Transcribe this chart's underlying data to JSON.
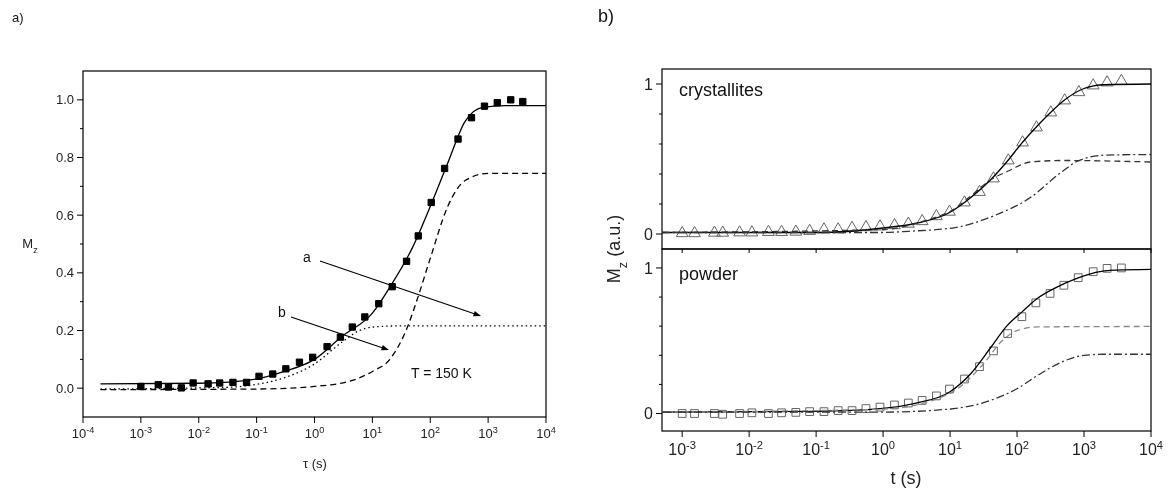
{
  "chart_data": [
    {
      "type": "line",
      "log": "x",
      "xlabel": "τ (s)",
      "ylabel": "M$_{z}$",
      "xlim": [
        0.0001,
        10000
      ],
      "ylim": [
        -0.1,
        1.1
      ],
      "xticks": [
        {
          "value": 0.0001,
          "label": "10$^{-4}$"
        },
        {
          "value": 0.001,
          "label": "10$^{-3}$"
        },
        {
          "value": 0.01,
          "label": "10$^{-2}$"
        },
        {
          "value": 0.1,
          "label": "10$^{-1}$"
        },
        {
          "value": 1,
          "label": "10$^{0}$"
        },
        {
          "value": 10,
          "label": "10$^{1}$"
        },
        {
          "value": 100,
          "label": "10$^{2}$"
        },
        {
          "value": 1000,
          "label": "10$^{3}$"
        },
        {
          "value": 10000,
          "label": "10$^{4}$"
        }
      ],
      "yticks": [
        {
          "value": 0,
          "label": "0.0"
        },
        {
          "value": 0.1,
          "label": null
        },
        {
          "value": 0.2,
          "label": "0.2"
        },
        {
          "value": 0.3,
          "label": null
        },
        {
          "value": 0.4,
          "label": "0.4"
        },
        {
          "value": 0.5,
          "label": null
        },
        {
          "value": 0.6,
          "label": "0.6"
        },
        {
          "value": 0.7,
          "label": null
        },
        {
          "value": 0.8,
          "label": "0.8"
        },
        {
          "value": 0.9,
          "label": null
        },
        {
          "value": 1,
          "label": "1.0"
        }
      ],
      "annotations": [
        "a)",
        "a",
        "b",
        "T = 150 K"
      ],
      "series": [
        {
          "type": "scatter",
          "marker": "square",
          "color": "#000000",
          "x": [
            0.001,
            0.002,
            0.003,
            0.005,
            0.008,
            0.0145,
            0.023,
            0.039,
            0.067,
            0.11,
            0.19,
            0.32,
            0.55,
            0.93,
            1.65,
            2.8,
            4.5,
            7.4,
            12.9,
            22,
            39,
            62,
            104,
            177,
            302,
            516,
            865,
            1440,
            2460,
            3970
          ],
          "values": [
            0.006,
            0.012,
            0.004,
            0.001,
            0.018,
            0.015,
            0.018,
            0.02,
            0.02,
            0.041,
            0.049,
            0.067,
            0.09,
            0.107,
            0.144,
            0.177,
            0.212,
            0.247,
            0.293,
            0.352,
            0.44,
            0.528,
            0.644,
            0.762,
            0.864,
            0.938,
            0.978,
            0.99,
            1.0,
            0.994
          ]
        },
        {
          "type": "line",
          "line_style": "solid",
          "color": "#000000",
          "x": [
            0.0002,
            0.01,
            0.1,
            0.3,
            1,
            3,
            10,
            20,
            50,
            100,
            200,
            400,
            800,
            2000,
            10000
          ],
          "values": [
            0.015,
            0.017,
            0.032,
            0.058,
            0.1,
            0.18,
            0.26,
            0.35,
            0.49,
            0.63,
            0.78,
            0.925,
            0.974,
            0.98,
            0.98
          ]
        },
        {
          "type": "line",
          "line_style": "dashed",
          "color": "#000000",
          "x": [
            0.0002,
            0.1,
            1,
            5,
            10,
            20,
            40,
            60,
            100,
            200,
            400,
            1000,
            10000
          ],
          "values": [
            -0.005,
            -0.003,
            0.006,
            0.03,
            0.058,
            0.1,
            0.21,
            0.31,
            0.45,
            0.63,
            0.72,
            0.745,
            0.745
          ]
        },
        {
          "type": "line",
          "line_style": "dotted",
          "color": "#000000",
          "x": [
            0.0002,
            0.03,
            0.1,
            0.3,
            1,
            3,
            6,
            10,
            30,
            10000
          ],
          "values": [
            -0.003,
            0.003,
            0.013,
            0.036,
            0.084,
            0.16,
            0.2,
            0.212,
            0.216,
            0.216
          ]
        }
      ]
    },
    {
      "type": "line",
      "log": "x",
      "tick_labels": "y",
      "ylabel": "M$_{z}$ (a.u.)",
      "xlim": [
        0.0005,
        10000
      ],
      "ylim": [
        -0.1,
        1.1
      ],
      "xticks": [
        {
          "value": 0.001,
          "label": null
        },
        {
          "value": 0.01,
          "label": null
        },
        {
          "value": 0.1,
          "label": null
        },
        {
          "value": 1,
          "label": null
        },
        {
          "value": 10,
          "label": null
        },
        {
          "value": 100,
          "label": null
        },
        {
          "value": 1000,
          "label": null
        },
        {
          "value": 10000,
          "label": null
        }
      ],
      "yticks": [
        {
          "value": 0,
          "label": "0"
        },
        {
          "value": 0.2,
          "label": null
        },
        {
          "value": 0.4,
          "label": null
        },
        {
          "value": 0.6,
          "label": null
        },
        {
          "value": 0.8,
          "label": null
        },
        {
          "value": 1,
          "label": "1"
        }
      ],
      "annotations": [
        "b)",
        "crystallites"
      ],
      "series": [
        {
          "type": "scatter",
          "marker": "triangle",
          "color": "#666666",
          "x": [
            0.001,
            0.00153,
            0.00303,
            0.00403,
            0.0072,
            0.011,
            0.0194,
            0.0305,
            0.0498,
            0.08,
            0.131,
            0.213,
            0.344,
            0.555,
            0.9,
            1.48,
            2.38,
            3.83,
            6.25,
            9.8,
            16.4,
            27.5,
            44.4,
            74,
            121,
            195,
            319,
            514,
            839,
            1370,
            2210,
            3610
          ],
          "values": [
            0.005,
            0.005,
            0.008,
            0.008,
            0.01,
            0.01,
            0.013,
            0.013,
            0.015,
            0.02,
            0.03,
            0.03,
            0.04,
            0.045,
            0.05,
            0.058,
            0.068,
            0.085,
            0.118,
            0.148,
            0.21,
            0.28,
            0.37,
            0.49,
            0.61,
            0.71,
            0.81,
            0.89,
            0.945,
            0.99,
            1.01,
            1.02
          ]
        },
        {
          "type": "line",
          "line_style": "solid",
          "color": "#000000",
          "x": [
            0.0005,
            0.1,
            1,
            3,
            10,
            20,
            40,
            70,
            120,
            200,
            300,
            500,
            1000,
            2000,
            10000
          ],
          "values": [
            0.01,
            0.01,
            0.04,
            0.07,
            0.145,
            0.24,
            0.36,
            0.48,
            0.61,
            0.72,
            0.8,
            0.89,
            0.97,
            0.995,
            1.0
          ]
        },
        {
          "type": "line",
          "line_style": "dashed",
          "color": "#333333",
          "x": [
            0.0005,
            1,
            5,
            10,
            20,
            40,
            74,
            158,
            500,
            10000
          ],
          "values": [
            0.01,
            0.03,
            0.1,
            0.15,
            0.25,
            0.36,
            0.42,
            0.48,
            0.49,
            0.48
          ]
        },
        {
          "type": "line",
          "line_style": "dashdot",
          "color": "#333333",
          "x": [
            0.0005,
            1,
            2.38,
            11.9,
            43,
            158,
            440,
            839,
            2070,
            10000
          ],
          "values": [
            0.01,
            0.01,
            0.018,
            0.043,
            0.118,
            0.243,
            0.406,
            0.49,
            0.526,
            0.53
          ]
        }
      ]
    },
    {
      "type": "line",
      "log": "x",
      "xlabel": "t (s)",
      "xlim": [
        0.0005,
        10000
      ],
      "ylim": [
        -0.12,
        1.13
      ],
      "xticks": [
        {
          "value": 0.001,
          "label": "10$^{-3}$"
        },
        {
          "value": 0.01,
          "label": "10$^{-2}$"
        },
        {
          "value": 0.1,
          "label": "10$^{-1}$"
        },
        {
          "value": 1,
          "label": "10$^{0}$"
        },
        {
          "value": 10,
          "label": "10$^{1}$"
        },
        {
          "value": 100,
          "label": "10$^{2}$"
        },
        {
          "value": 1000,
          "label": "10$^{3}$"
        },
        {
          "value": 10000,
          "label": "10$^{4}$"
        }
      ],
      "yticks": [
        {
          "value": 0,
          "label": "0"
        },
        {
          "value": 0.2,
          "label": null
        },
        {
          "value": 0.4,
          "label": null
        },
        {
          "value": 0.6,
          "label": null
        },
        {
          "value": 0.8,
          "label": null
        },
        {
          "value": 1,
          "label": "1"
        }
      ],
      "annotations": [
        "powder"
      ],
      "series": [
        {
          "type": "scatter",
          "marker": "square",
          "color": "#666666",
          "x": [
            0.001,
            0.00153,
            0.00303,
            0.00403,
            0.0072,
            0.011,
            0.0194,
            0.0305,
            0.0498,
            0.08,
            0.131,
            0.213,
            0.344,
            0.555,
            0.9,
            1.48,
            2.38,
            3.83,
            6.25,
            9.8,
            16.4,
            27.5,
            44.4,
            72.5,
            118,
            191,
            311,
            501,
            818,
            1370,
            2210,
            3610
          ],
          "values": [
            0,
            0,
            0,
            -0.005,
            0,
            0.005,
            0,
            0.005,
            0.008,
            0.013,
            0.013,
            0.02,
            0.02,
            0.034,
            0.044,
            0.059,
            0.072,
            0.09,
            0.121,
            0.168,
            0.237,
            0.322,
            0.43,
            0.549,
            0.665,
            0.76,
            0.825,
            0.881,
            0.933,
            0.974,
            0.997,
            1.0
          ]
        },
        {
          "type": "line",
          "line_style": "solid",
          "color": "#000000",
          "x": [
            0.0005,
            0.1,
            1,
            3,
            10,
            20,
            40,
            70,
            120,
            200,
            400,
            800,
            1500,
            3000,
            10000
          ],
          "values": [
            0.01,
            0.015,
            0.035,
            0.07,
            0.15,
            0.27,
            0.45,
            0.6,
            0.7,
            0.79,
            0.87,
            0.93,
            0.97,
            0.985,
            0.99
          ]
        },
        {
          "type": "line",
          "line_style": "dashed",
          "color": "#888888",
          "x": [
            0.0005,
            1,
            10,
            30,
            60,
            100,
            200,
            10000
          ],
          "values": [
            0.01,
            0.03,
            0.14,
            0.33,
            0.5,
            0.57,
            0.595,
            0.598
          ]
        },
        {
          "type": "line",
          "line_style": "dashdot",
          "color": "#333333",
          "x": [
            0.0005,
            1,
            10,
            40,
            100,
            200,
            500,
            1000,
            2000,
            10000
          ],
          "values": [
            0.01,
            0.01,
            0.031,
            0.09,
            0.17,
            0.26,
            0.36,
            0.4,
            0.407,
            0.407
          ]
        }
      ]
    }
  ]
}
